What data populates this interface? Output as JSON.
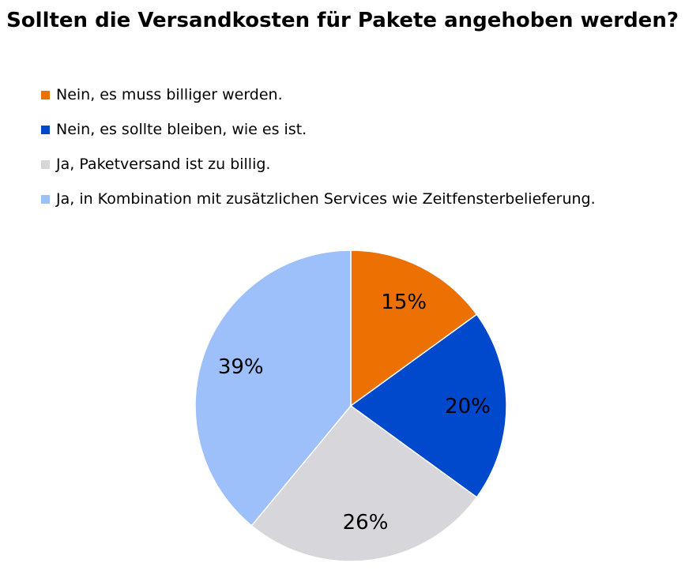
{
  "chart_data": {
    "type": "pie",
    "title": "Sollten die Versandkosten für Pakete angehoben werden?",
    "slices": [
      {
        "label": "Nein, es muss billiger werden.",
        "value": 15,
        "value_label": "15%",
        "color": "#ED7003"
      },
      {
        "label": "Nein, es sollte bleiben, wie es ist.",
        "value": 20,
        "value_label": "20%",
        "color": "#0048CC"
      },
      {
        "label": "Ja, Paketversand ist zu billig.",
        "value": 26,
        "value_label": "26%",
        "color": "#D6D6DB"
      },
      {
        "label": "Ja, in Kombination mit zusätzlichen Services wie Zeitfensterbelieferung.",
        "value": 39,
        "value_label": "39%",
        "color": "#9DC0FB"
      }
    ],
    "legend_position": "top-left",
    "start_angle": "12 o'clock",
    "direction": "clockwise"
  }
}
